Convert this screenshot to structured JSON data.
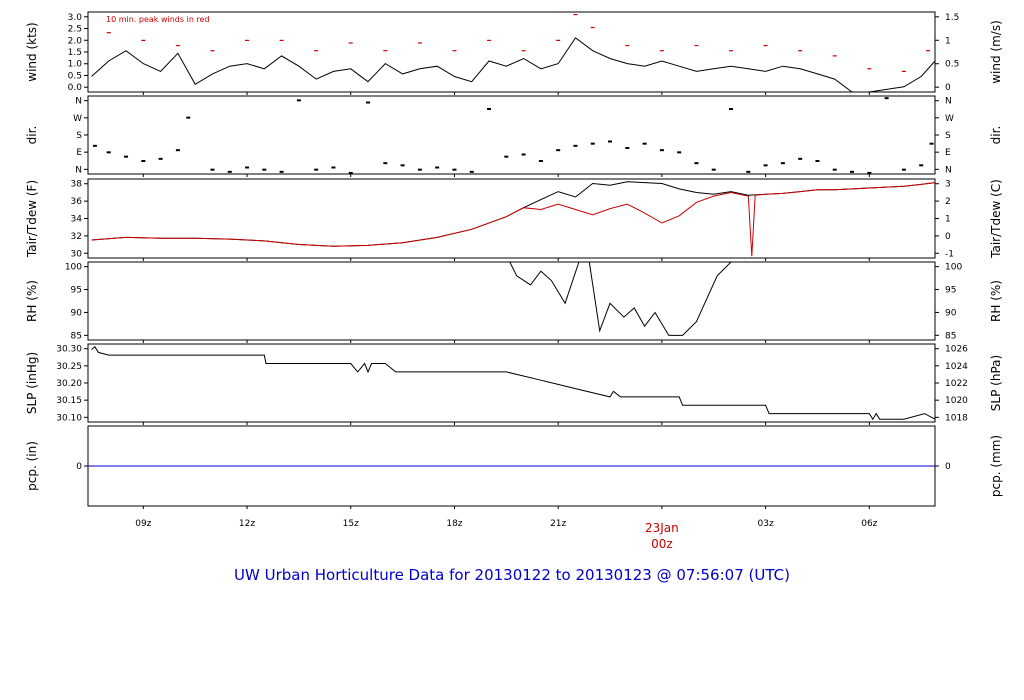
{
  "caption": "UW Urban Horticulture Data for 20130122  to  20130123 @ 07:56:07  (UTC)",
  "colors": {
    "primary": "#000000",
    "tdew": "#cc0000",
    "peak": "#cc0000",
    "pcp": "#0000cc",
    "caption": "#0000cc",
    "date": "#cc0000"
  },
  "x_axis": {
    "ticks": [
      "09z",
      "12z",
      "15z",
      "18z",
      "21z",
      "00z",
      "03z",
      "06z"
    ],
    "date_marker": {
      "line1": "23Jan",
      "line2": "00z"
    },
    "range_hours": [
      7.4,
      31.9
    ],
    "tick_hours": [
      9,
      12,
      15,
      18,
      21,
      24,
      27,
      30
    ]
  },
  "chart_data": [
    {
      "type": "line",
      "panel": "wind",
      "ylabel_left": "wind (kts)",
      "ylabel_right": "wind (m/s)",
      "annotation": "10 min. peak winds in red",
      "ylim": [
        0,
        3.1
      ],
      "yticks_left": [
        "0.0",
        "0.5",
        "1.0",
        "1.5",
        "2.0",
        "2.5",
        "3.0"
      ],
      "yticks_right": [
        "0",
        "0.5",
        "1",
        "1.5"
      ],
      "series": [
        {
          "values_description": "sustained wind",
          "x": [
            7.5,
            8.0,
            8.5,
            9.0,
            9.5,
            10.0,
            10.5,
            11.0,
            11.5,
            12.0,
            12.5,
            13.0,
            13.5,
            14.0,
            14.5,
            15.0,
            15.5,
            16.0,
            16.5,
            17.0,
            17.5,
            18.0,
            18.5,
            19.0,
            19.5,
            20.0,
            20.5,
            21.0,
            21.5,
            22.0,
            22.5,
            23.0,
            23.5,
            24.0,
            24.5,
            25.0,
            25.5,
            26.0,
            26.5,
            27.0,
            27.5,
            28.0,
            28.5,
            29.0,
            29.5,
            30.0,
            30.5,
            31.0,
            31.5,
            31.9
          ],
          "y": [
            0.6,
            1.2,
            1.6,
            1.1,
            0.8,
            1.5,
            0.3,
            0.7,
            1.0,
            1.1,
            0.9,
            1.4,
            1.0,
            0.5,
            0.8,
            0.9,
            0.4,
            1.1,
            0.7,
            0.9,
            1.0,
            0.6,
            0.4,
            1.2,
            1.0,
            1.3,
            0.9,
            1.1,
            2.1,
            1.6,
            1.3,
            1.1,
            1.0,
            1.2,
            1.0,
            0.8,
            0.9,
            1.0,
            0.9,
            0.8,
            1.0,
            0.9,
            0.7,
            0.5,
            0.0,
            0.0,
            0.1,
            0.2,
            0.6,
            1.2
          ]
        },
        {
          "values_description": "peak wind",
          "x": [
            8.0,
            9.0,
            10.0,
            11.0,
            12.0,
            13.0,
            14.0,
            15.0,
            16.0,
            17.0,
            18.0,
            19.0,
            20.0,
            21.0,
            21.5,
            22.0,
            23.0,
            24.0,
            25.0,
            26.0,
            27.0,
            28.0,
            29.0,
            30.0,
            31.0,
            31.7
          ],
          "y": [
            2.3,
            2.0,
            1.8,
            1.6,
            2.0,
            2.0,
            1.6,
            1.9,
            1.6,
            1.9,
            1.6,
            2.0,
            1.6,
            2.0,
            3.0,
            2.5,
            1.8,
            1.6,
            1.8,
            1.6,
            1.8,
            1.6,
            1.4,
            0.9,
            0.8,
            1.6
          ]
        }
      ]
    },
    {
      "type": "scatter",
      "panel": "dir",
      "ylabel_left": "dir.",
      "ylabel_right": "dir.",
      "ylim": [
        0,
        360
      ],
      "yticks_left": [
        "N",
        "E",
        "S",
        "W",
        "N"
      ],
      "yticks_right": [
        "N",
        "E",
        "S",
        "W",
        "N"
      ],
      "x": [
        7.6,
        8.0,
        8.5,
        9.0,
        9.5,
        10.0,
        10.3,
        11.0,
        11.5,
        12.0,
        12.5,
        13.0,
        13.5,
        14.0,
        14.5,
        15.0,
        15.5,
        16.0,
        16.5,
        17.0,
        17.5,
        18.0,
        18.5,
        19.0,
        19.5,
        20.0,
        20.5,
        21.0,
        21.5,
        22.0,
        22.5,
        23.0,
        23.5,
        24.0,
        24.5,
        25.0,
        25.5,
        26.0,
        26.5,
        27.0,
        27.5,
        28.0,
        28.5,
        29.0,
        29.5,
        30.0,
        30.5,
        31.0,
        31.5,
        31.8
      ],
      "y": [
        130,
        100,
        80,
        60,
        70,
        110,
        260,
        20,
        10,
        30,
        20,
        10,
        340,
        20,
        30,
        5,
        330,
        50,
        40,
        20,
        30,
        20,
        10,
        300,
        80,
        90,
        60,
        110,
        130,
        140,
        150,
        120,
        140,
        110,
        100,
        50,
        20,
        300,
        10,
        40,
        50,
        70,
        60,
        20,
        10,
        5,
        350,
        20,
        40,
        140
      ]
    },
    {
      "type": "line",
      "panel": "temp",
      "ylabel_left": "Tair/Tdew (F)",
      "ylabel_right": "Tair/Tdew (C)",
      "ylim": [
        29.6,
        38.4
      ],
      "yticks_left": [
        "30",
        "32",
        "34",
        "36",
        "38"
      ],
      "yticks_right": [
        "-1",
        "0",
        "1",
        "2",
        "3"
      ],
      "series": [
        {
          "values_description": "air temperature",
          "x": [
            7.5,
            8.5,
            9.5,
            10.5,
            11.5,
            12.5,
            13.5,
            14.5,
            15.5,
            16.5,
            17.5,
            18.5,
            19.5,
            20.0,
            20.5,
            21.0,
            21.5,
            22.0,
            22.5,
            23.0,
            23.5,
            24.0,
            24.5,
            25.0,
            25.5,
            26.0,
            26.5,
            27.0,
            27.5,
            28.0,
            28.5,
            29.0,
            29.5,
            30.0,
            30.5,
            31.0,
            31.5,
            31.9
          ],
          "y": [
            31.6,
            31.9,
            31.8,
            31.8,
            31.7,
            31.5,
            31.1,
            30.9,
            31.0,
            31.3,
            31.9,
            32.8,
            34.2,
            35.2,
            36.1,
            37.0,
            36.4,
            37.9,
            37.7,
            38.1,
            38.0,
            37.9,
            37.3,
            36.9,
            36.7,
            37.0,
            36.6,
            36.7,
            36.8,
            37.0,
            37.2,
            37.2,
            37.3,
            37.4,
            37.5,
            37.6,
            37.8,
            38.0
          ]
        },
        {
          "values_description": "dew point",
          "x": [
            7.5,
            8.5,
            9.5,
            10.5,
            11.5,
            12.5,
            13.5,
            14.5,
            15.5,
            16.5,
            17.5,
            18.5,
            19.5,
            20.0,
            20.5,
            21.0,
            21.5,
            22.0,
            22.5,
            23.0,
            23.5,
            24.0,
            24.5,
            25.0,
            25.5,
            26.0,
            26.5,
            26.6,
            26.7,
            27.0,
            27.5,
            28.0,
            28.5,
            29.0,
            29.5,
            30.0,
            30.5,
            31.0,
            31.5,
            31.9
          ],
          "y": [
            31.6,
            31.9,
            31.8,
            31.8,
            31.7,
            31.5,
            31.1,
            30.9,
            31.0,
            31.3,
            31.9,
            32.8,
            34.2,
            35.2,
            35.0,
            35.6,
            35.0,
            34.4,
            35.1,
            35.6,
            34.6,
            33.5,
            34.3,
            35.8,
            36.5,
            36.9,
            36.5,
            29.8,
            36.6,
            36.7,
            36.8,
            37.0,
            37.2,
            37.2,
            37.3,
            37.4,
            37.5,
            37.6,
            37.8,
            38.0
          ]
        }
      ]
    },
    {
      "type": "line",
      "panel": "rh",
      "ylabel_left": "RH (%)",
      "ylabel_right": "RH (%)",
      "ylim": [
        83,
        100
      ],
      "yticks_left": [
        "85",
        "90",
        "95",
        "100"
      ],
      "yticks_right": [
        "85",
        "90",
        "95",
        "100"
      ],
      "x": [
        7.5,
        19.6,
        19.8,
        20.2,
        20.5,
        20.8,
        21.2,
        21.6,
        21.9,
        22.2,
        22.5,
        22.9,
        23.2,
        23.5,
        23.8,
        24.2,
        24.6,
        25.0,
        25.3,
        25.6,
        26.0,
        26.5,
        31.9
      ],
      "y": [
        100,
        100,
        97,
        95,
        98,
        96,
        91,
        100,
        100,
        85,
        91,
        88,
        90,
        86,
        89,
        84,
        84,
        87,
        92,
        97,
        100,
        100,
        100
      ]
    },
    {
      "type": "line",
      "panel": "slp",
      "ylabel_left": "SLP (inHg)",
      "ylabel_right": "SLP (hPa)",
      "ylim": [
        30.06,
        30.34
      ],
      "yticks_left": [
        "30.10",
        "30.15",
        "30.20",
        "30.25",
        "30.30"
      ],
      "yticks_right": [
        "1018",
        "1020",
        "1022",
        "1024",
        "1026"
      ],
      "x": [
        7.5,
        7.6,
        7.7,
        8.0,
        12.5,
        12.55,
        15.0,
        15.2,
        15.4,
        15.5,
        15.6,
        16.0,
        16.3,
        19.5,
        20.5,
        21.5,
        22.5,
        22.6,
        22.8,
        23.0,
        24.5,
        24.6,
        27.0,
        27.1,
        30.0,
        30.1,
        30.2,
        30.3,
        31.0,
        31.6,
        31.9
      ],
      "y": [
        30.32,
        30.33,
        30.31,
        30.3,
        30.3,
        30.27,
        30.27,
        30.24,
        30.27,
        30.24,
        30.27,
        30.27,
        30.24,
        30.24,
        30.21,
        30.18,
        30.15,
        30.17,
        30.15,
        30.15,
        30.15,
        30.12,
        30.12,
        30.09,
        30.09,
        30.07,
        30.09,
        30.07,
        30.07,
        30.09,
        30.07
      ]
    },
    {
      "type": "line",
      "panel": "pcp",
      "ylabel_left": "pcp. (in)",
      "ylabel_right": "pcp. (mm)",
      "ylim": [
        -1,
        1
      ],
      "yticks_left": [
        "0"
      ],
      "yticks_right": [
        "0"
      ],
      "x": [
        7.4,
        31.9
      ],
      "y": [
        0,
        0
      ]
    }
  ]
}
